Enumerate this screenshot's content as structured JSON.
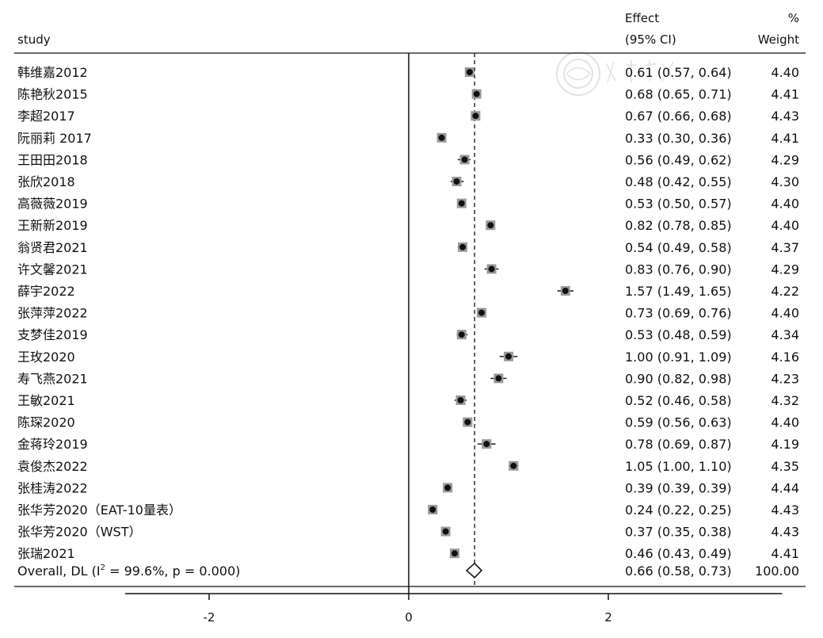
{
  "header": {
    "study_label": "study",
    "effect_label": "Effect",
    "ci_label": "(95% CI)",
    "pct_label": "%",
    "weight_label": "Weight"
  },
  "chart_data": {
    "type": "forest",
    "xlim": [
      -3.0,
      3.9
    ],
    "xticks": [
      -2,
      0,
      2
    ],
    "xtick_labels": [
      "-2",
      "0",
      "2"
    ],
    "null_line": 0,
    "overall_line": 0.66,
    "studies": [
      {
        "name": "韩维嘉2012",
        "es": 0.61,
        "lo": 0.57,
        "hi": 0.64,
        "ci_text": "0.61 (0.57, 0.64)",
        "weight": "4.40"
      },
      {
        "name": "陈艳秋2015",
        "es": 0.68,
        "lo": 0.65,
        "hi": 0.71,
        "ci_text": "0.68 (0.65, 0.71)",
        "weight": "4.41"
      },
      {
        "name": "李超2017",
        "es": 0.67,
        "lo": 0.66,
        "hi": 0.68,
        "ci_text": "0.67 (0.66, 0.68)",
        "weight": "4.43"
      },
      {
        "name": "阮丽莉 2017",
        "es": 0.33,
        "lo": 0.3,
        "hi": 0.36,
        "ci_text": "0.33 (0.30, 0.36)",
        "weight": "4.41"
      },
      {
        "name": "王田田2018",
        "es": 0.56,
        "lo": 0.49,
        "hi": 0.62,
        "ci_text": "0.56 (0.49, 0.62)",
        "weight": "4.29"
      },
      {
        "name": "张欣2018",
        "es": 0.48,
        "lo": 0.42,
        "hi": 0.55,
        "ci_text": "0.48 (0.42, 0.55)",
        "weight": "4.30"
      },
      {
        "name": "高薇薇2019",
        "es": 0.53,
        "lo": 0.5,
        "hi": 0.57,
        "ci_text": "0.53 (0.50, 0.57)",
        "weight": "4.40"
      },
      {
        "name": "王新新2019",
        "es": 0.82,
        "lo": 0.78,
        "hi": 0.85,
        "ci_text": "0.82 (0.78, 0.85)",
        "weight": "4.40"
      },
      {
        "name": "翁贤君2021",
        "es": 0.54,
        "lo": 0.49,
        "hi": 0.58,
        "ci_text": "0.54 (0.49, 0.58)",
        "weight": "4.37"
      },
      {
        "name": "许文馨2021",
        "es": 0.83,
        "lo": 0.76,
        "hi": 0.9,
        "ci_text": "0.83 (0.76, 0.90)",
        "weight": "4.29"
      },
      {
        "name": "薛宇2022",
        "es": 1.57,
        "lo": 1.49,
        "hi": 1.65,
        "ci_text": "1.57 (1.49, 1.65)",
        "weight": "4.22"
      },
      {
        "name": "张萍萍2022",
        "es": 0.73,
        "lo": 0.69,
        "hi": 0.76,
        "ci_text": "0.73 (0.69, 0.76)",
        "weight": "4.40"
      },
      {
        "name": "支梦佳2019",
        "es": 0.53,
        "lo": 0.48,
        "hi": 0.59,
        "ci_text": "0.53 (0.48, 0.59)",
        "weight": "4.34"
      },
      {
        "name": "王玫2020",
        "es": 1.0,
        "lo": 0.91,
        "hi": 1.09,
        "ci_text": "1.00 (0.91, 1.09)",
        "weight": "4.16"
      },
      {
        "name": "寿飞燕2021",
        "es": 0.9,
        "lo": 0.82,
        "hi": 0.98,
        "ci_text": "0.90 (0.82, 0.98)",
        "weight": "4.23"
      },
      {
        "name": "王敏2021",
        "es": 0.52,
        "lo": 0.46,
        "hi": 0.58,
        "ci_text": "0.52 (0.46, 0.58)",
        "weight": "4.32"
      },
      {
        "name": "陈琛2020",
        "es": 0.59,
        "lo": 0.56,
        "hi": 0.63,
        "ci_text": "0.59 (0.56, 0.63)",
        "weight": "4.40"
      },
      {
        "name": "金蒋玲2019",
        "es": 0.78,
        "lo": 0.69,
        "hi": 0.87,
        "ci_text": "0.78 (0.69, 0.87)",
        "weight": "4.19"
      },
      {
        "name": "袁俊杰2022",
        "es": 1.05,
        "lo": 1.0,
        "hi": 1.1,
        "ci_text": "1.05 (1.00, 1.10)",
        "weight": "4.35"
      },
      {
        "name": "张桂涛2022",
        "es": 0.39,
        "lo": 0.39,
        "hi": 0.39,
        "ci_text": "0.39 (0.39, 0.39)",
        "weight": "4.44"
      },
      {
        "name": "张华芳2020（EAT-10量表）",
        "es": 0.24,
        "lo": 0.22,
        "hi": 0.25,
        "ci_text": "0.24 (0.22, 0.25)",
        "weight": "4.43"
      },
      {
        "name": "张华芳2020（WST）",
        "es": 0.37,
        "lo": 0.35,
        "hi": 0.38,
        "ci_text": "0.37 (0.35, 0.38)",
        "weight": "4.43"
      },
      {
        "name": "张瑞2021",
        "es": 0.46,
        "lo": 0.43,
        "hi": 0.49,
        "ci_text": "0.46 (0.43, 0.49)",
        "weight": "4.41"
      }
    ],
    "overall": {
      "name_prefix": "Overall, DL (I",
      "name_sup": "2",
      "name_suffix": " = 99.6%, p = 0.000)",
      "es": 0.66,
      "lo": 0.58,
      "hi": 0.73,
      "ci_text": "0.66 (0.58, 0.73)",
      "weight": "100.00"
    }
  }
}
